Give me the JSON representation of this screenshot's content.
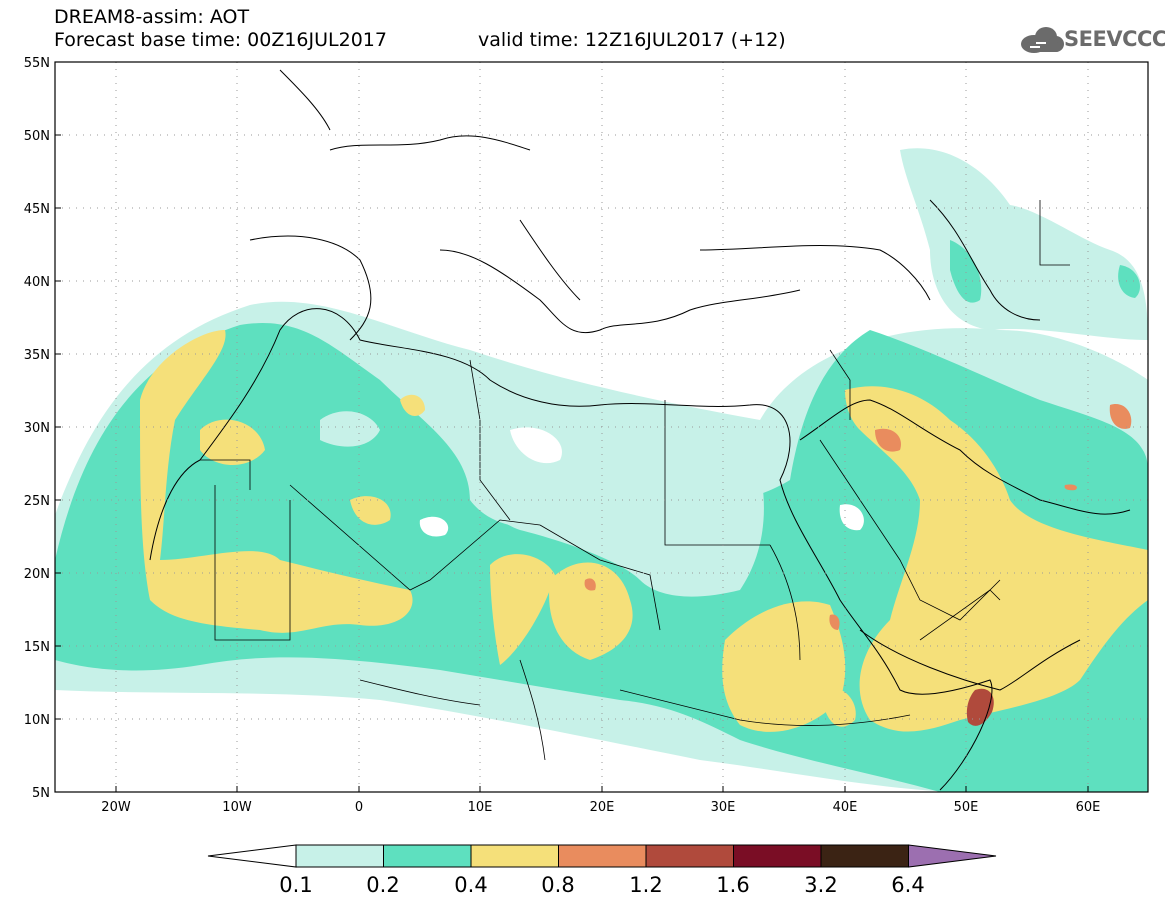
{
  "header": {
    "title": "DREAM8-assim: AOT",
    "base_time": "Forecast base time: 00Z16JUL2017",
    "valid_time": "valid time: 12Z16JUL2017 (+12)"
  },
  "logo": {
    "text": "SEEVCCC",
    "icon": "cloud-icon"
  },
  "map": {
    "lat_labels": [
      "55N",
      "50N",
      "45N",
      "40N",
      "35N",
      "30N",
      "25N",
      "20N",
      "15N",
      "10N",
      "5N"
    ],
    "lon_labels": [
      "20W",
      "10W",
      "0",
      "10E",
      "20E",
      "30E",
      "40E",
      "50E",
      "60E"
    ]
  },
  "legend": {
    "ticks": [
      "0.1",
      "0.2",
      "0.4",
      "0.8",
      "1.2",
      "1.6",
      "3.2",
      "6.4"
    ],
    "colors": [
      "#ffffff",
      "#c7f1e8",
      "#5ee0bf",
      "#f5e07a",
      "#e98c5e",
      "#b04a3c",
      "#7a0d25",
      "#3b2314",
      "#9c6fb0"
    ]
  }
}
